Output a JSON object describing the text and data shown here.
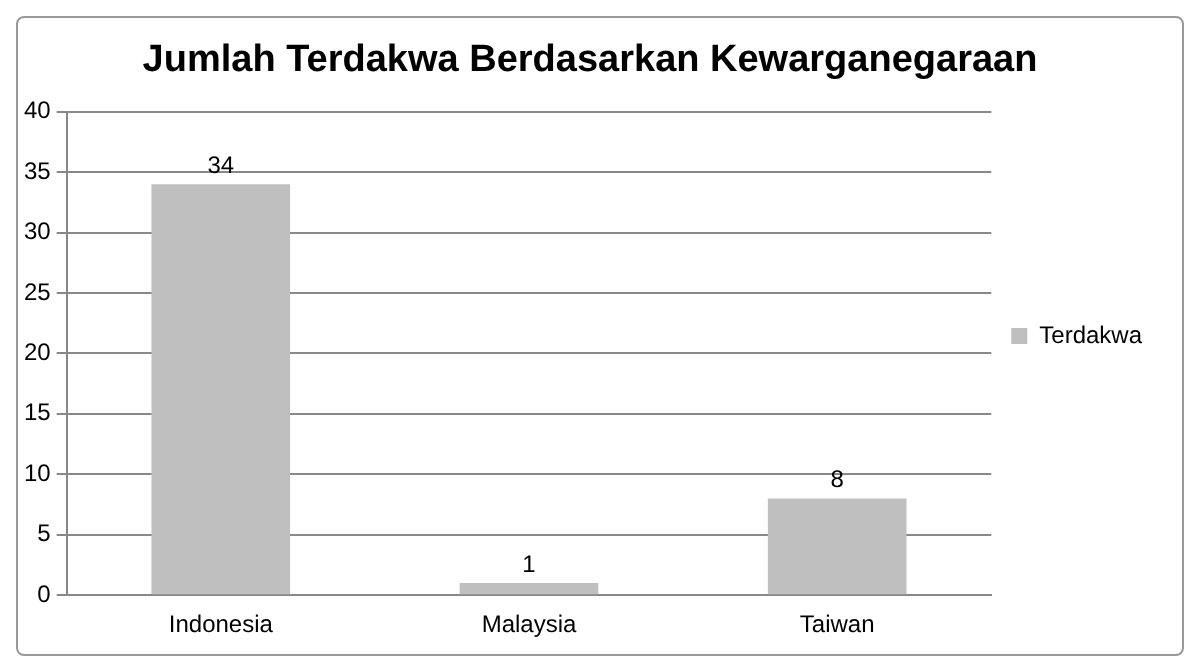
{
  "chart_data": {
    "type": "bar",
    "title": "Jumlah Terdakwa Berdasarkan Kewarganegaraan",
    "categories": [
      "Indonesia",
      "Malaysia",
      "Taiwan"
    ],
    "series": [
      {
        "name": "Terdakwa",
        "color": "#bfbfbf",
        "values": [
          34,
          1,
          8
        ]
      }
    ],
    "ylim": [
      0,
      40
    ],
    "yticks": [
      0,
      5,
      10,
      15,
      20,
      25,
      30,
      35,
      40
    ],
    "grid": "y",
    "legend": "right",
    "data_labels": true
  }
}
